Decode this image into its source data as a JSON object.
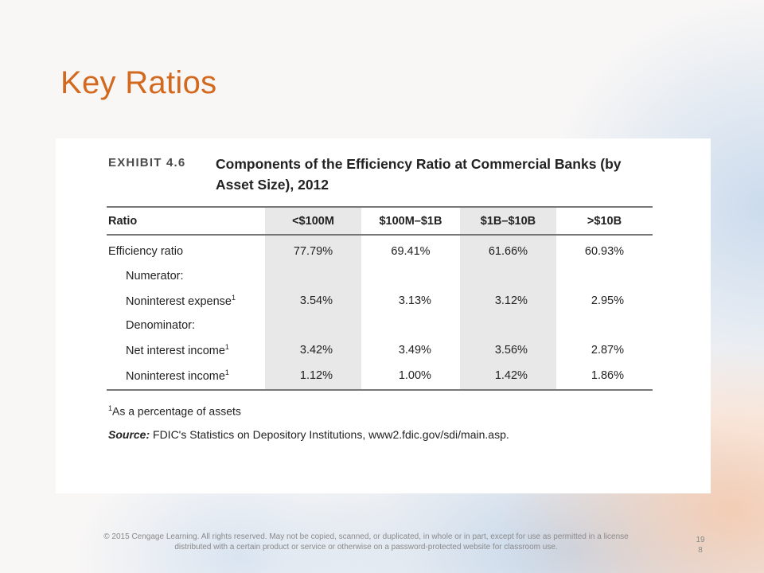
{
  "slide": {
    "title": "Key Ratios",
    "copyright": "© 2015 Cengage Learning. All rights reserved. May not be copied, scanned, or duplicated, in whole or in part, except for use as permitted in a license distributed with a certain product or service or otherwise on a password-protected website for classroom use.",
    "page_number": "198"
  },
  "exhibit": {
    "label": "EXHIBIT 4.6",
    "title": "Components of the Efficiency Ratio at Commercial Banks (by Asset Size), 2012",
    "headers": [
      "Ratio",
      "<$100M",
      "$100M–$1B",
      "$1B–$10B",
      ">$10B"
    ],
    "rows": [
      {
        "label": "Efficiency ratio",
        "values": [
          "77.79%",
          "69.41%",
          "61.66%",
          "60.93%"
        ]
      },
      {
        "label": "Numerator:",
        "values": [
          "",
          "",
          "",
          ""
        ]
      },
      {
        "label": "Noninterest expense",
        "footnote_mark": "1",
        "values": [
          "3.54%",
          "3.13%",
          "3.12%",
          "2.95%"
        ]
      },
      {
        "label": "Denominator:",
        "values": [
          "",
          "",
          "",
          ""
        ]
      },
      {
        "label": "Net interest income",
        "footnote_mark": "1",
        "values": [
          "3.42%",
          "3.49%",
          "3.56%",
          "2.87%"
        ]
      },
      {
        "label": "Noninterest income",
        "footnote_mark": "1",
        "values": [
          "1.12%",
          "1.00%",
          "1.42%",
          "1.86%"
        ]
      }
    ],
    "footnote_mark": "1",
    "footnote": "As a percentage of assets",
    "source_label": "Source:",
    "source_text": " FDIC's Statistics on Depository Institutions, www2.fdic.gov/sdi/main.asp."
  }
}
